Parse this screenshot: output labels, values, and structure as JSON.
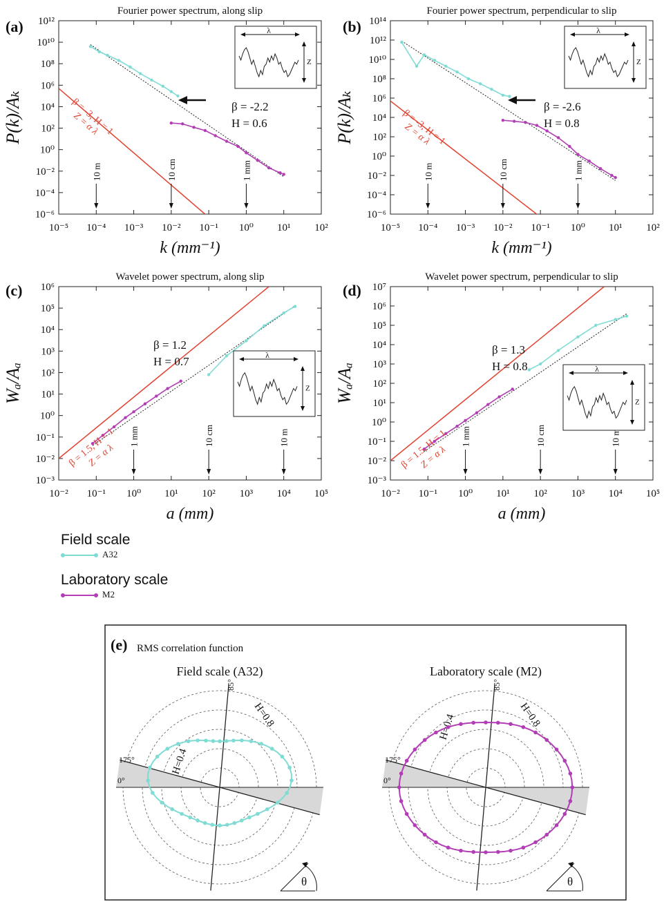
{
  "colors": {
    "field": "#7fdcd4",
    "lab": "#b23db5",
    "red": "#e2412f",
    "dotted": "#222222",
    "shade": "#d8d8d8"
  },
  "chart_data": [
    {
      "panel": "(a)",
      "type": "line",
      "title": "Fourier power spectrum, along slip",
      "xlabel": "k (mm⁻¹)",
      "ylabel": "P(k)/Aₖ",
      "xscale": "log",
      "yscale": "log",
      "xlim": [
        1e-05,
        100
      ],
      "ylim": [
        1e-06,
        1000000000000.0
      ],
      "xticks": [
        "10⁻⁵",
        "10⁻⁴",
        "10⁻³",
        "10⁻²",
        "10⁻¹",
        "10⁰",
        "10¹",
        "10²"
      ],
      "yticks": [
        "10⁻⁶",
        "10⁻⁴",
        "10⁻²",
        "10⁰",
        "10²",
        "10⁴",
        "10⁶",
        "10⁸",
        "10¹⁰",
        "10¹²"
      ],
      "annotations": {
        "beta": "β = -2.2",
        "hurst": "H = 0.6",
        "ref": "β = -3, H = 1",
        "ref2": "Z = α λ"
      },
      "scale_markers": [
        {
          "label": "10 m",
          "x": 0.0001
        },
        {
          "label": "10 cm",
          "x": 0.01
        },
        {
          "label": "1 mm",
          "x": 1
        }
      ],
      "series": [
        {
          "name": "A32",
          "x": [
            7e-05,
            0.00012,
            0.0002,
            0.0004,
            0.0008,
            0.0015,
            0.003,
            0.006,
            0.01,
            0.015
          ],
          "y": [
            4000000000.0,
            1300000000.0,
            600000000.0,
            200000000.0,
            50000000.0,
            12000000.0,
            3000000.0,
            800000.0,
            250000.0,
            100000.0
          ]
        },
        {
          "name": "M2",
          "x": [
            0.01,
            0.02,
            0.04,
            0.08,
            0.15,
            0.3,
            0.6,
            1,
            2,
            4,
            8,
            10
          ],
          "y": [
            300,
            250,
            120,
            60,
            20,
            6,
            2,
            0.5,
            0.1,
            0.02,
            0.007,
            0.005
          ]
        }
      ],
      "fit": {
        "x": [
          7e-05,
          10
        ],
        "y": [
          6000000000.0,
          0.003
        ]
      },
      "reference": {
        "x": [
          1e-05,
          0.1
        ],
        "y": [
          500000.0,
          5e-07
        ]
      }
    },
    {
      "panel": "(b)",
      "type": "line",
      "title": "Fourier power spectrum, perpendicular to slip",
      "xlabel": "k (mm⁻¹)",
      "ylabel": "P(k)/Aₖ",
      "xscale": "log",
      "yscale": "log",
      "xlim": [
        1e-05,
        100
      ],
      "ylim": [
        1e-06,
        100000000000000.0
      ],
      "xticks": [
        "10⁻⁵",
        "10⁻⁴",
        "10⁻³",
        "10⁻²",
        "10⁻¹",
        "10⁰",
        "10¹",
        "10²"
      ],
      "yticks": [
        "10⁻⁶",
        "10⁻⁴",
        "10⁻²",
        "10⁰",
        "10²",
        "10⁴",
        "10⁶",
        "10⁸",
        "10¹⁰",
        "10¹²",
        "10¹⁴"
      ],
      "annotations": {
        "beta": "β = -2.6",
        "hurst": "H = 0.8",
        "ref": "β = -3, H = 1",
        "ref2": "Z = α λ"
      },
      "scale_markers": [
        {
          "label": "10 m",
          "x": 0.0001
        },
        {
          "label": "10 cm",
          "x": 0.01
        },
        {
          "label": "1 mm",
          "x": 1
        }
      ],
      "series": [
        {
          "name": "A32",
          "x": [
            2e-05,
            5e-05,
            8e-05,
            0.00015,
            0.0003,
            0.0006,
            0.0012,
            0.0025,
            0.005,
            0.01,
            0.015
          ],
          "y": [
            600000000000.0,
            2000000000.0,
            30000000000.0,
            8000000000.0,
            2000000000.0,
            500000000.0,
            100000000.0,
            30000000.0,
            8000000.0,
            2000000.0,
            1500000.0
          ]
        },
        {
          "name": "M2",
          "x": [
            0.01,
            0.02,
            0.04,
            0.08,
            0.15,
            0.3,
            0.6,
            1,
            2,
            4,
            8,
            10
          ],
          "y": [
            5000,
            4000,
            3000,
            1500,
            400,
            80,
            10,
            1.5,
            0.3,
            0.05,
            0.01,
            0.006
          ]
        }
      ],
      "fit": {
        "x": [
          2e-05,
          10
        ],
        "y": [
          800000000000.0,
          0.003
        ]
      },
      "reference": {
        "x": [
          1e-05,
          0.1
        ],
        "y": [
          500000.0,
          5e-07
        ]
      }
    },
    {
      "panel": "(c)",
      "type": "line",
      "title": "Wavelet power spectrum, along slip",
      "xlabel": "a (mm)",
      "ylabel": "Wₐ/Aₐ",
      "xscale": "log",
      "yscale": "log",
      "xlim": [
        0.01,
        100000.0
      ],
      "ylim": [
        0.001,
        1000000.0
      ],
      "xticks": [
        "10⁻²",
        "10⁻¹",
        "10⁰",
        "10¹",
        "10²",
        "10³",
        "10⁴",
        "10⁵"
      ],
      "yticks": [
        "10⁻³",
        "10⁻²",
        "10⁻¹",
        "10⁰",
        "10¹",
        "10²",
        "10³",
        "10⁴",
        "10⁵",
        "10⁶"
      ],
      "annotations": {
        "beta": "β = 1.2",
        "hurst": "H = 0.7",
        "ref": "β = 1.5, H = 1",
        "ref2": "Z = α λ"
      },
      "scale_markers": [
        {
          "label": "1 mm",
          "x": 1
        },
        {
          "label": "10 cm",
          "x": 100
        },
        {
          "label": "10 m",
          "x": 10000.0
        }
      ],
      "series": [
        {
          "name": "A32",
          "x": [
            100,
            300,
            1000,
            3000,
            10000,
            20000
          ],
          "y": [
            80,
            600,
            3000,
            15000,
            60000,
            120000
          ]
        },
        {
          "name": "M2",
          "x": [
            0.08,
            0.15,
            0.3,
            0.6,
            1,
            2,
            4,
            8,
            18
          ],
          "y": [
            0.05,
            0.12,
            0.3,
            0.8,
            1.5,
            3.5,
            8,
            18,
            40
          ]
        }
      ],
      "fit": {
        "x": [
          0.08,
          20000
        ],
        "y": [
          0.04,
          130000
        ]
      },
      "reference": {
        "x": [
          0.01,
          4000
        ],
        "y": [
          0.01,
          1000000.0
        ]
      }
    },
    {
      "panel": "(d)",
      "type": "line",
      "title": "Wavelet power spectrum, perpendicular to slip",
      "xlabel": "a (mm)",
      "ylabel": "Wₐ/Aₐ",
      "xscale": "log",
      "yscale": "log",
      "xlim": [
        0.01,
        100000.0
      ],
      "ylim": [
        0.001,
        10000000.0
      ],
      "xticks": [
        "10⁻²",
        "10⁻¹",
        "10⁰",
        "10¹",
        "10²",
        "10³",
        "10⁴",
        "10⁵"
      ],
      "yticks": [
        "10⁻³",
        "10⁻²",
        "10⁻¹",
        "10⁰",
        "10¹",
        "10²",
        "10³",
        "10⁴",
        "10⁵",
        "10⁶",
        "10⁷"
      ],
      "annotations": {
        "beta": "β = 1.3",
        "hurst": "H = 0.8",
        "ref": "β = 1.5, H = 1",
        "ref2": "Z = α λ"
      },
      "scale_markers": [
        {
          "label": "1 mm",
          "x": 1
        },
        {
          "label": "10 cm",
          "x": 100
        },
        {
          "label": "10 m",
          "x": 10000.0
        }
      ],
      "series": [
        {
          "name": "A32",
          "x": [
            50,
            100,
            300,
            1000,
            3000,
            10000,
            20000
          ],
          "y": [
            500,
            1000,
            5000,
            25000,
            100000,
            200000,
            300000
          ]
        },
        {
          "name": "M2",
          "x": [
            0.08,
            0.15,
            0.3,
            0.6,
            1,
            2,
            4,
            8,
            18
          ],
          "y": [
            0.04,
            0.1,
            0.25,
            0.6,
            1.2,
            3,
            8,
            20,
            50
          ]
        }
      ],
      "fit": {
        "x": [
          0.08,
          20000
        ],
        "y": [
          0.03,
          400000
        ]
      },
      "reference": {
        "x": [
          0.01,
          5000
        ],
        "y": [
          0.01,
          10000000.0
        ]
      }
    }
  ],
  "legend": [
    {
      "label": "Field scale",
      "code": "A32",
      "color": "#7fdcd4"
    },
    {
      "label": "Laboratory scale",
      "code": "M2",
      "color": "#b23db5"
    }
  ],
  "polar": {
    "panel": "(e)",
    "title": "RMS correlation function",
    "theta_label": "θ",
    "angle_labels": [
      "85°",
      "175°",
      "0°"
    ],
    "charts": [
      {
        "title": "Field scale (A32)",
        "color": "#7fdcd4",
        "h_outer": "H=0.8",
        "h_inner": "H=0.4",
        "h_values": [
          0.4,
          0.8
        ]
      },
      {
        "title": "Laboratory scale (M2)",
        "color": "#b23db5",
        "h_outer": "H=0.8",
        "h_inner": "H=0.4",
        "h_values": [
          0.4,
          0.8
        ]
      }
    ]
  }
}
